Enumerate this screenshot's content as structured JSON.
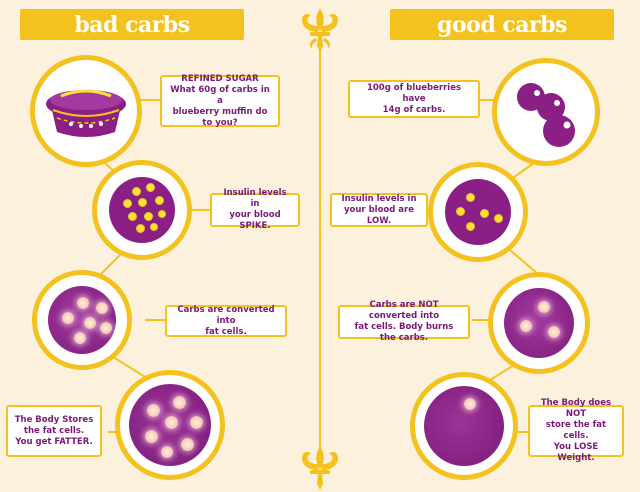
{
  "headers": {
    "bad": "bad carbs",
    "good": "good carbs"
  },
  "bad": {
    "steps": [
      "REFINED SUGAR\nWhat 60g of carbs in a\nblueberry muffin do to you?",
      "Insulin levels in\nyour blood SPIKE.",
      "Carbs are converted into\nfat cells.",
      "The Body Stores\nthe fat cells.\nYou get FATTER."
    ],
    "icons": [
      "muffin-icon",
      "blood-cell-spike-icon",
      "fat-cell-icon",
      "fat-cells-stored-icon"
    ]
  },
  "good": {
    "steps": [
      "100g of blueberries have\n14g of carbs.",
      "Insulin levels in\nyour blood are LOW.",
      "Carbs are NOT converted into\nfat cells. Body burns the carbs.",
      "The Body does NOT\nstore the fat cells.\nYou LOSE Weight."
    ],
    "icons": [
      "blueberries-icon",
      "blood-cell-low-icon",
      "few-fat-cells-icon",
      "single-fat-cell-icon"
    ]
  },
  "colors": {
    "background": "#fbf1dc",
    "accent_yellow": "#f4c21e",
    "purple": "#8a1f86",
    "text_purple": "#7a1a78"
  }
}
